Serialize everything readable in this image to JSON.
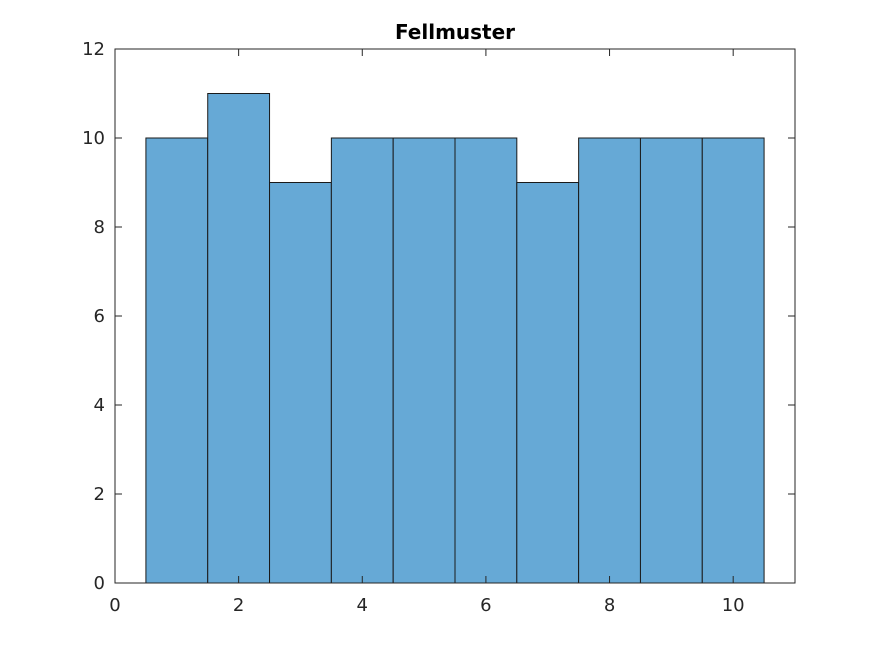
{
  "chart_data": {
    "type": "bar",
    "title": "Fellmuster",
    "xlabel": "",
    "ylabel": "",
    "bin_edges": [
      0.5,
      1.5,
      2.5,
      3.5,
      4.5,
      5.5,
      6.5,
      7.5,
      8.5,
      9.5,
      10.5
    ],
    "categories": [
      "1",
      "2",
      "3",
      "4",
      "5",
      "6",
      "7",
      "8",
      "9",
      "10"
    ],
    "values": [
      10,
      11,
      9,
      10,
      10,
      10,
      9,
      10,
      10,
      10
    ],
    "xlim": [
      0,
      11
    ],
    "ylim": [
      0,
      12
    ],
    "xticks": [
      0,
      2,
      4,
      6,
      8,
      10
    ],
    "yticks": [
      0,
      2,
      4,
      6,
      8,
      10,
      12
    ],
    "grid": false,
    "bar_color": "#66a9d6",
    "edge_color": "#1a1a1a"
  }
}
